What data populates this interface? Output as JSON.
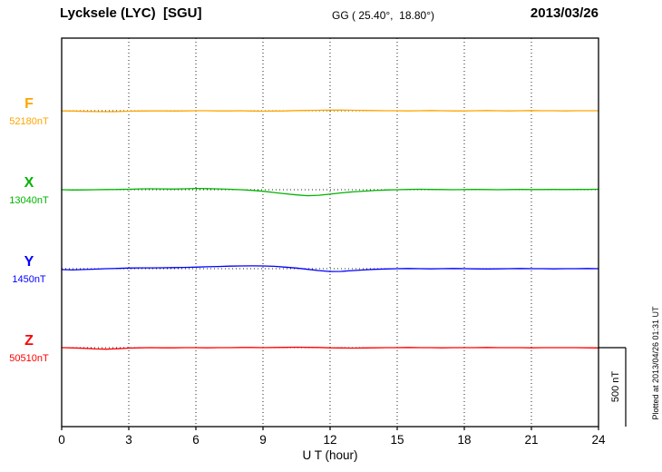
{
  "header": {
    "station": "Lycksele (LYC)  [SGU]",
    "coords": "GG ( 25.40°,  18.80°)",
    "date": "2013/03/26"
  },
  "plotted_note": "Plotted at 2013/04/26 01:31 UT",
  "colors": {
    "F": "#FFA500",
    "X": "#00B400",
    "Y": "#0000FF",
    "Z": "#FF0000",
    "axis": "#000000",
    "grid": "#222222"
  },
  "chart_data": {
    "type": "line",
    "title": "Lycksele (LYC) [SGU] magnetogram 2013/03/26",
    "xlabel": "U T (hour)",
    "x_range": [
      0,
      24
    ],
    "x_ticks": [
      0,
      3,
      6,
      9,
      12,
      15,
      18,
      21,
      24
    ],
    "x_step_hours": 0.5,
    "grid": "dotted-vertical-every-3h",
    "scale_bar": {
      "label": "500 nT",
      "nT": 500
    },
    "series": [
      {
        "name": "F",
        "baseline_nT": 52180,
        "baseline_label": "52180nT",
        "color": "#FFA500",
        "deviations_nT": [
          -1,
          -2,
          -4,
          -5,
          -6,
          -5,
          -3,
          -2,
          -1,
          -1,
          -2,
          -1,
          0,
          0,
          -1,
          -1,
          0,
          -2,
          -3,
          -2,
          -1,
          1,
          2,
          3,
          4,
          4,
          3,
          2,
          1,
          0,
          0,
          -1,
          0,
          1,
          0,
          -1,
          -1,
          0,
          1,
          0,
          -1,
          0,
          1,
          0,
          0,
          -1,
          0,
          0,
          0
        ]
      },
      {
        "name": "X",
        "baseline_nT": 13040,
        "baseline_label": "13040nT",
        "color": "#00B400",
        "deviations_nT": [
          0,
          -2,
          -1,
          0,
          1,
          2,
          3,
          5,
          6,
          5,
          4,
          6,
          8,
          7,
          5,
          3,
          0,
          -4,
          -10,
          -18,
          -26,
          -33,
          -38,
          -35,
          -28,
          -20,
          -14,
          -9,
          -5,
          -2,
          0,
          2,
          3,
          2,
          1,
          0,
          1,
          2,
          1,
          0,
          1,
          2,
          1,
          1,
          2,
          1,
          2,
          2,
          3
        ]
      },
      {
        "name": "Y",
        "baseline_nT": 1450,
        "baseline_label": "1450nT",
        "color": "#0000FF",
        "deviations_nT": [
          -6,
          -8,
          -5,
          -3,
          0,
          2,
          4,
          5,
          5,
          6,
          7,
          8,
          10,
          12,
          14,
          16,
          17,
          18,
          17,
          15,
          10,
          4,
          -4,
          -12,
          -18,
          -17,
          -12,
          -8,
          -4,
          -2,
          0,
          1,
          0,
          -1,
          0,
          1,
          0,
          -1,
          -2,
          -1,
          0,
          1,
          0,
          0,
          -1,
          0,
          0,
          1,
          0
        ]
      },
      {
        "name": "Z",
        "baseline_nT": 50510,
        "baseline_label": "50510nT",
        "color": "#FF0000",
        "deviations_nT": [
          0,
          -2,
          -4,
          -8,
          -10,
          -7,
          -3,
          -1,
          0,
          -1,
          -1,
          0,
          0,
          -1,
          0,
          0,
          1,
          1,
          0,
          1,
          2,
          3,
          2,
          1,
          -1,
          -2,
          -3,
          -2,
          -1,
          0,
          0,
          1,
          0,
          0,
          -1,
          0,
          0,
          0,
          1,
          0,
          0,
          0,
          -1,
          0,
          0,
          0,
          0,
          -1,
          -2
        ]
      }
    ]
  }
}
